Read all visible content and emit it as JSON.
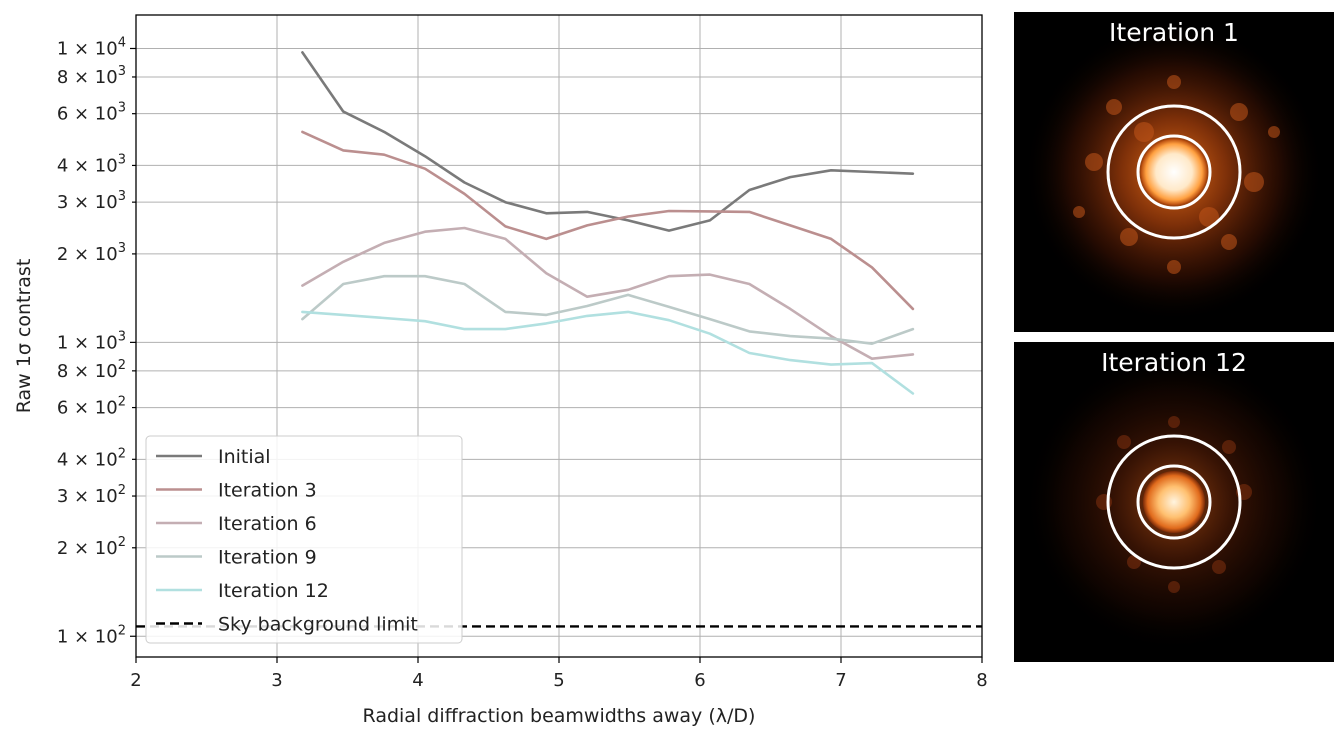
{
  "chart_data": {
    "type": "line",
    "title": "",
    "xlabel": "Radial diffraction beamwidths away (λ/D)",
    "ylabel": "Raw 1σ contrast",
    "xlim": [
      2,
      8
    ],
    "ylim": [
      85,
      13000
    ],
    "yscale": "log",
    "grid": true,
    "legend_position": "lower-left",
    "x_ticks": [
      2,
      3,
      4,
      5,
      6,
      7,
      8
    ],
    "y_major_ticks": [
      {
        "value": 100,
        "mant": "1",
        "exp": "2"
      },
      {
        "value": 1000,
        "mant": "1",
        "exp": "3"
      },
      {
        "value": 10000,
        "mant": "1",
        "exp": "4"
      }
    ],
    "y_minor_ticks": [
      {
        "value": 200,
        "mant": "2",
        "exp": "2"
      },
      {
        "value": 300,
        "mant": "3",
        "exp": "2"
      },
      {
        "value": 400,
        "mant": "4",
        "exp": "2"
      },
      {
        "value": 600,
        "mant": "6",
        "exp": "2"
      },
      {
        "value": 800,
        "mant": "8",
        "exp": "2"
      },
      {
        "value": 2000,
        "mant": "2",
        "exp": "3"
      },
      {
        "value": 3000,
        "mant": "3",
        "exp": "3"
      },
      {
        "value": 4000,
        "mant": "4",
        "exp": "3"
      },
      {
        "value": 6000,
        "mant": "6",
        "exp": "3"
      },
      {
        "value": 8000,
        "mant": "8",
        "exp": "3"
      }
    ],
    "x": [
      3.18,
      3.47,
      3.76,
      4.05,
      4.33,
      4.62,
      4.91,
      5.2,
      5.49,
      5.78,
      6.07,
      6.35,
      6.64,
      6.93,
      7.22,
      7.51
    ],
    "series": [
      {
        "name": "Initial",
        "color": "#7a7a7a",
        "values": [
          9700,
          6100,
          5200,
          4300,
          3500,
          3000,
          2750,
          2780,
          2600,
          2400,
          2600,
          3300,
          3650,
          3850,
          3800,
          3750
        ]
      },
      {
        "name": "Iteration 3",
        "color": "#bb8f8f",
        "values": [
          5200,
          4500,
          4350,
          3900,
          3200,
          2480,
          2250,
          2500,
          2680,
          2800,
          2790,
          2780,
          2500,
          2250,
          1800,
          1300
        ]
      },
      {
        "name": "Iteration 6",
        "color": "#c4aeb3",
        "values": [
          1560,
          1880,
          2180,
          2380,
          2450,
          2250,
          1720,
          1430,
          1510,
          1680,
          1700,
          1580,
          1300,
          1050,
          880,
          910
        ]
      },
      {
        "name": "Iteration 9",
        "color": "#bccac8",
        "values": [
          1200,
          1580,
          1680,
          1680,
          1580,
          1270,
          1240,
          1330,
          1450,
          1320,
          1200,
          1090,
          1050,
          1030,
          990,
          1110
        ]
      },
      {
        "name": "Iteration 12",
        "color": "#b1e0e0",
        "values": [
          1270,
          1240,
          1210,
          1180,
          1110,
          1110,
          1160,
          1230,
          1270,
          1190,
          1070,
          920,
          870,
          840,
          850,
          670
        ]
      }
    ],
    "reference_line": {
      "name": "Sky background limit",
      "value": 108,
      "color": "#000000",
      "style": "dashed"
    }
  },
  "panels": [
    {
      "title": "Iteration 1"
    },
    {
      "title": "Iteration 12"
    }
  ]
}
